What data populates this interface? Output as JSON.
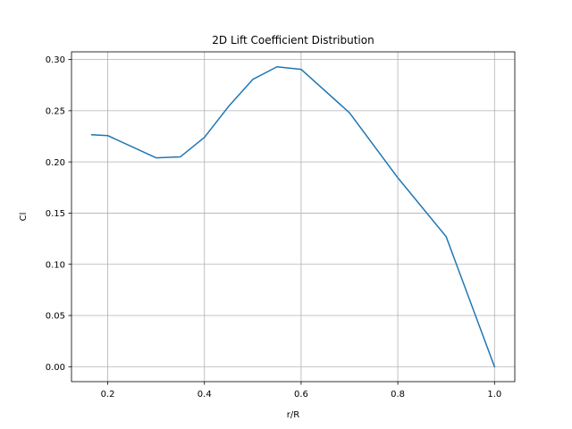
{
  "chart_data": {
    "type": "line",
    "title": "2D Lift Coefficient Distribution",
    "xlabel": "r/R",
    "ylabel": "Cl",
    "xlim": [
      0.125,
      1.042
    ],
    "ylim": [
      -0.0146,
      0.3075
    ],
    "grid": true,
    "x_ticks": [
      0.2,
      0.4,
      0.6,
      0.8,
      1.0
    ],
    "x_tick_labels": [
      "0.2",
      "0.4",
      "0.6",
      "0.8",
      "1.0"
    ],
    "y_ticks": [
      0.0,
      0.05,
      0.1,
      0.15,
      0.2,
      0.25,
      0.3
    ],
    "y_tick_labels": [
      "0.00",
      "0.05",
      "0.10",
      "0.15",
      "0.20",
      "0.25",
      "0.30"
    ],
    "series": [
      {
        "color": "#1f77b4",
        "x": [
          0.167,
          0.2,
          0.3,
          0.35,
          0.4,
          0.45,
          0.5,
          0.55,
          0.6,
          0.7,
          0.8,
          0.9,
          1.0
        ],
        "y": [
          0.2265,
          0.2257,
          0.204,
          0.2049,
          0.224,
          0.2542,
          0.2806,
          0.2929,
          0.2904,
          0.248,
          0.1845,
          0.127,
          0.0
        ]
      }
    ]
  }
}
